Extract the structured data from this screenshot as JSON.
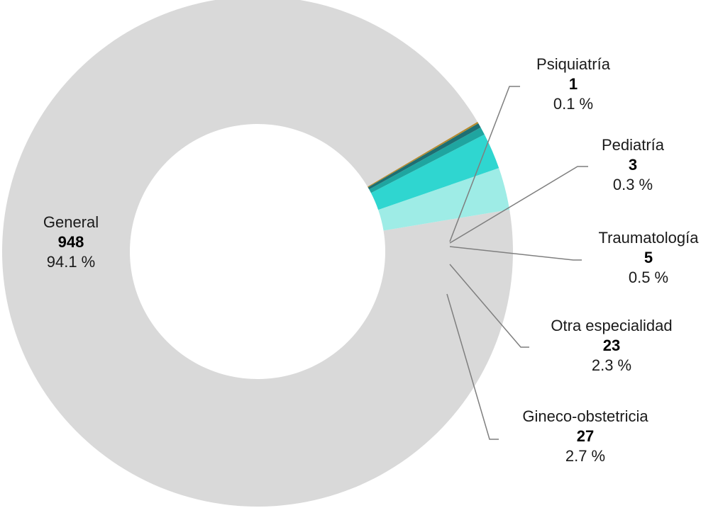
{
  "chart_data": {
    "type": "pie",
    "variant": "donut",
    "title": "",
    "slices": [
      {
        "label": "General",
        "value": 948,
        "percent": "94.1 %",
        "color": "#d9d9d9"
      },
      {
        "label": "Gineco-obstetricia",
        "value": 27,
        "percent": "2.7 %",
        "color": "#9eece6"
      },
      {
        "label": "Otra especialidad",
        "value": 23,
        "percent": "2.3 %",
        "color": "#2fd6d0"
      },
      {
        "label": "Traumatología",
        "value": 5,
        "percent": "0.5 %",
        "color": "#1fa5a0"
      },
      {
        "label": "Pediatría",
        "value": 3,
        "percent": "0.3 %",
        "color": "#1d6f73"
      },
      {
        "label": "Psiquiatría",
        "value": 1,
        "percent": "0.1 %",
        "color": "#b58a2e"
      }
    ],
    "legend": "none",
    "data_labels": "name, value, percent"
  }
}
